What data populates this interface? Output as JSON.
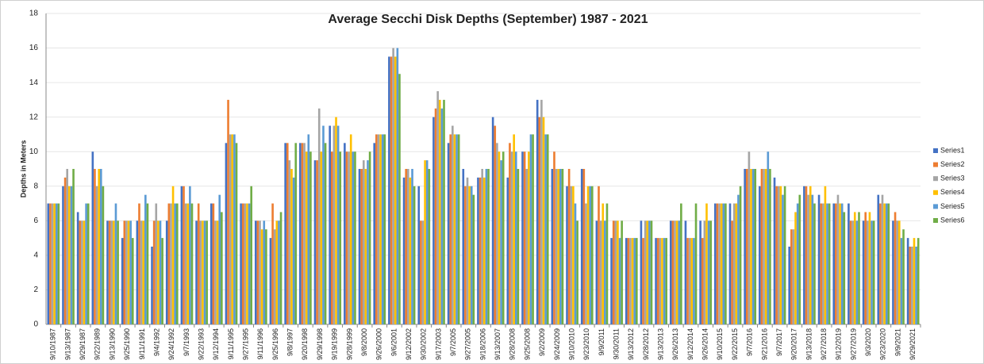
{
  "chart_data": {
    "type": "bar",
    "title": "Average Secchi Disk Depths (September) 1987 - 2021",
    "y_label": "Depths in Meters",
    "categories": [
      "9/10/1987",
      "9/13/1987",
      "9/29/1987",
      "9/22/1989",
      "9/13/1990",
      "9/25/1990",
      "9/11/1991",
      "9/4/1992",
      "9/24/1992",
      "9/7/1993",
      "9/22/1993",
      "9/12/1994",
      "9/11/1995",
      "9/27/1995",
      "9/11/1996",
      "9/25/1996",
      "9/8/1997",
      "9/20/1998",
      "9/29/1998",
      "9/19/1999",
      "9/28/1999",
      "9/8/2000",
      "9/26/2000",
      "9/6/2001",
      "9/12/2002",
      "9/30/2002",
      "9/17/2003",
      "9/7/2005",
      "9/27/2005",
      "9/18/2006",
      "9/13/2007",
      "9/28/2008",
      "9/25/2008",
      "9/2/2009",
      "9/24/2009",
      "9/10/2010",
      "9/23/2010",
      "9/9/2011",
      "9/30/2011",
      "9/13/2012",
      "9/28/2012",
      "9/13/2013",
      "9/26/2013",
      "9/12/2014",
      "9/26/2014",
      "9/10/2015",
      "9/22/2015",
      "9/7/2016",
      "9/21/2016",
      "9/7/2017",
      "9/20/2017",
      "9/13/2018",
      "9/27/2018",
      "9/12/2019",
      "9/27/2019",
      "9/3/2020",
      "9/23/2020",
      "9/9/2021",
      "9/29/2021"
    ],
    "series": [
      {
        "name": "Series1",
        "color": "#4472c4",
        "values": [
          7,
          8,
          6.5,
          10,
          6,
          5,
          6,
          4.5,
          6,
          8,
          6,
          7,
          10.5,
          7,
          6,
          5,
          10.5,
          10.5,
          9.5,
          11.5,
          10.5,
          9,
          10.5,
          15.5,
          8.5,
          8,
          12,
          10.5,
          9,
          8.5,
          12,
          8.5,
          10,
          13,
          9,
          8,
          9,
          6,
          5,
          5,
          6,
          5,
          6,
          6,
          6,
          7,
          7,
          9,
          8,
          8.5,
          4.5,
          8,
          7.5,
          7,
          7,
          6,
          7.5,
          6,
          5
        ]
      },
      {
        "name": "Series2",
        "color": "#ed7d31",
        "values": [
          7,
          8.5,
          6,
          9,
          6,
          6,
          7,
          6,
          7,
          8,
          7,
          7,
          13,
          7,
          6,
          7,
          10.5,
          10.5,
          9.5,
          10,
          10,
          9,
          11,
          15.5,
          9,
          6,
          12.5,
          11,
          8,
          8.5,
          11.5,
          10.5,
          10,
          12,
          10,
          9,
          9,
          8,
          6,
          5,
          5,
          5,
          6,
          5,
          5,
          7,
          6,
          9,
          9,
          8,
          5.5,
          8,
          7,
          7,
          6,
          6.5,
          7,
          6.5,
          4.5
        ]
      },
      {
        "name": "Series3",
        "color": "#a5a5a5",
        "values": [
          7,
          9,
          6,
          8,
          6,
          6,
          6,
          7,
          7,
          7,
          6,
          6,
          11,
          7,
          6,
          5.5,
          9.5,
          10.5,
          12.5,
          11.5,
          10,
          9.5,
          11,
          16,
          9,
          6,
          13.5,
          11.5,
          8.5,
          9,
          10.5,
          10,
          9,
          13,
          9,
          8,
          7,
          6,
          6,
          5,
          6,
          5,
          6,
          5,
          6,
          7,
          7,
          10,
          9,
          8,
          5.5,
          7.5,
          7,
          7.5,
          6,
          6,
          7.5,
          6,
          4.5
        ]
      },
      {
        "name": "Series4",
        "color": "#ffc000",
        "values": [
          7,
          8,
          6,
          9,
          6,
          6,
          6,
          6,
          8,
          7,
          6,
          6,
          11,
          7,
          5.5,
          6,
          9,
          10,
          10,
          12,
          11,
          9,
          11,
          15.5,
          8.5,
          9.5,
          13,
          11,
          8,
          8.5,
          10,
          11,
          10,
          12,
          9,
          8,
          8,
          7,
          6,
          5,
          6,
          5,
          6,
          5,
          7,
          7,
          7,
          9,
          9,
          8,
          6.5,
          8,
          8,
          7,
          6.5,
          6.5,
          7,
          6,
          5
        ]
      },
      {
        "name": "Series5",
        "color": "#5b9bd5",
        "values": [
          7,
          8,
          7,
          9,
          7,
          6,
          7.5,
          6,
          7,
          8,
          6,
          7.5,
          11,
          7,
          6,
          6,
          8.5,
          11,
          11.5,
          11.5,
          10,
          9.5,
          11,
          16,
          9,
          9.5,
          12.5,
          11,
          8,
          9,
          9.5,
          10,
          11,
          11,
          9,
          7,
          8,
          6,
          5,
          5,
          6,
          5,
          6,
          5,
          6,
          7,
          7.5,
          9,
          10,
          7.5,
          7,
          7.5,
          7,
          7,
          6,
          6,
          7,
          5,
          4.5
        ]
      },
      {
        "name": "Series6",
        "color": "#70ad47",
        "values": [
          7,
          9,
          7,
          8,
          6,
          5,
          7,
          5,
          7,
          7,
          6,
          6.5,
          10.5,
          8,
          5.5,
          6.5,
          10.5,
          10,
          10.5,
          10,
          10,
          10,
          11,
          14.5,
          8,
          9,
          13,
          11,
          7.5,
          9,
          10,
          9,
          11,
          11,
          9,
          6,
          8,
          7,
          6,
          5,
          6,
          5,
          7,
          7,
          6,
          7,
          8,
          9,
          9,
          8,
          7.5,
          7,
          7,
          6.5,
          6.5,
          6,
          7,
          5.5,
          5
        ]
      }
    ],
    "ylim": [
      0,
      18
    ],
    "yticks": [
      0,
      2,
      4,
      6,
      8,
      10,
      12,
      14,
      16,
      18
    ],
    "grid": true,
    "legend": "right"
  }
}
